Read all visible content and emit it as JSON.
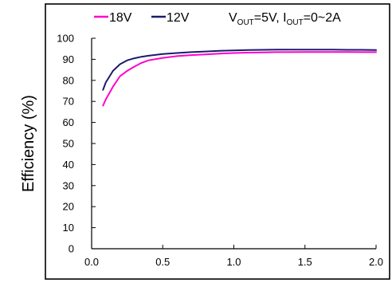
{
  "chart_data": {
    "type": "line",
    "title": "",
    "xlabel": "",
    "ylabel": "Efficiency (%)",
    "xlim": [
      0,
      2.0
    ],
    "ylim": [
      0,
      100
    ],
    "x_ticks": [
      "0.0",
      "0.5",
      "1.0",
      "1.5",
      "2.0"
    ],
    "y_ticks": [
      "0",
      "10",
      "20",
      "30",
      "40",
      "50",
      "60",
      "70",
      "80",
      "90",
      "100"
    ],
    "grid": false,
    "legend_position": "top-left",
    "conditions": {
      "vout_prefix": "V",
      "vout_sub": "OUT",
      "vout_value": "=5V, ",
      "iout_prefix": "I",
      "iout_sub": "OUT",
      "iout_value": "=0~2A"
    },
    "series": [
      {
        "name": "18V",
        "color": "#ff00cc",
        "x": [
          0.08,
          0.1,
          0.15,
          0.2,
          0.25,
          0.3,
          0.35,
          0.4,
          0.5,
          0.6,
          0.7,
          0.8,
          0.9,
          1.0,
          1.1,
          1.2,
          1.3,
          1.4,
          1.5,
          1.6,
          1.7,
          1.8,
          1.9,
          2.0
        ],
        "values": [
          68,
          71,
          77,
          82,
          84.5,
          86.5,
          88.3,
          89.5,
          90.7,
          91.5,
          92,
          92.3,
          92.7,
          93,
          93.2,
          93.3,
          93.4,
          93.4,
          93.5,
          93.5,
          93.5,
          93.5,
          93.4,
          93.4
        ]
      },
      {
        "name": "12V",
        "color": "#1a1a6e",
        "x": [
          0.08,
          0.1,
          0.15,
          0.2,
          0.25,
          0.3,
          0.35,
          0.4,
          0.5,
          0.6,
          0.7,
          0.8,
          0.9,
          1.0,
          1.1,
          1.2,
          1.3,
          1.4,
          1.5,
          1.6,
          1.7,
          1.8,
          1.9,
          2.0
        ],
        "values": [
          75.5,
          79,
          84.5,
          87.7,
          89.5,
          90.5,
          91.2,
          91.7,
          92.5,
          93,
          93.4,
          93.7,
          94,
          94.2,
          94.4,
          94.5,
          94.6,
          94.6,
          94.6,
          94.6,
          94.6,
          94.5,
          94.5,
          94.4
        ]
      }
    ]
  }
}
